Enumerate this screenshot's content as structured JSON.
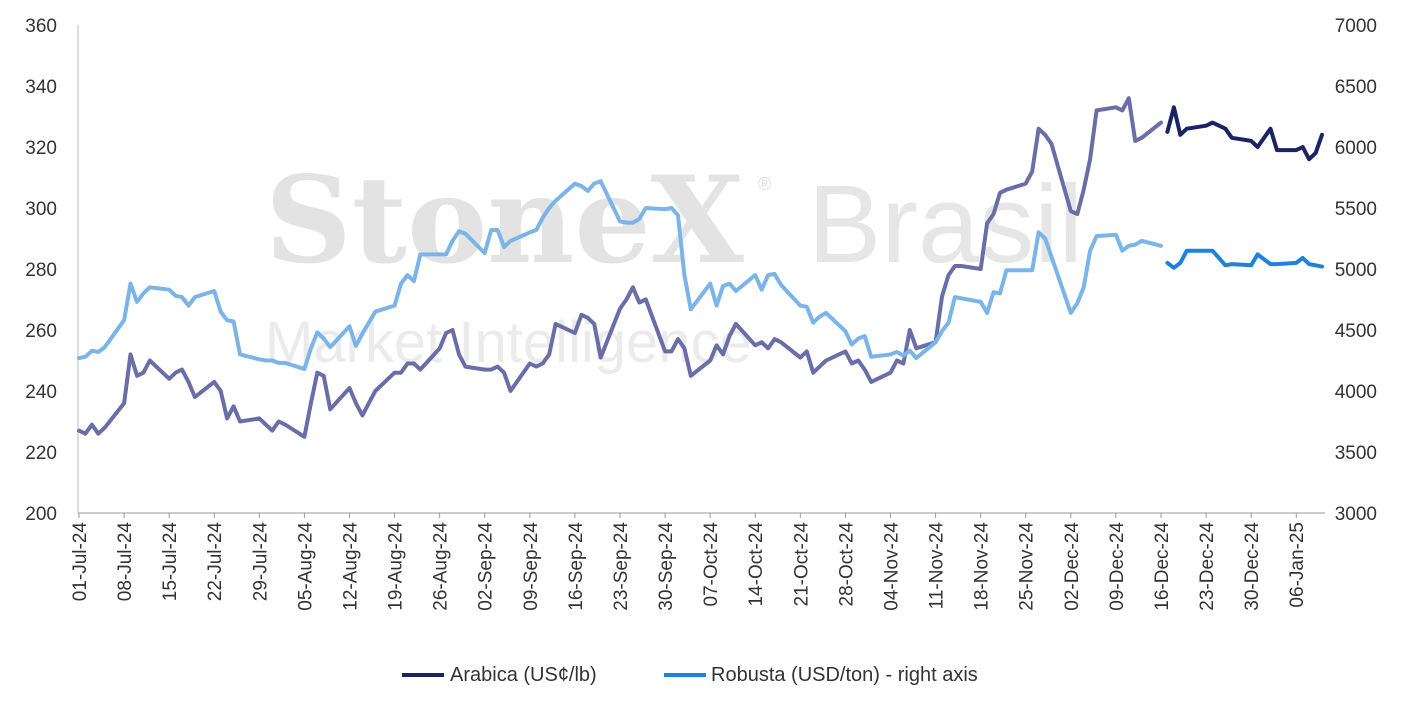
{
  "watermark": {
    "brand": "StoneX",
    "registered": "®",
    "country": "Brasil",
    "subtitle": "Market Intelligence"
  },
  "colors": {
    "arabica_hist": "#6a6ea8",
    "arabica_recent": "#1b2266",
    "robusta_hist": "#7ab4e8",
    "robusta_recent": "#1e82dc"
  },
  "chart_data": {
    "type": "line",
    "title": "",
    "xlabel": "",
    "ylabel": "",
    "ylim_left": [
      200,
      360
    ],
    "ylim_right": [
      3000,
      7000
    ],
    "yticks_left": [
      "200",
      "220",
      "240",
      "260",
      "280",
      "300",
      "320",
      "340",
      "360"
    ],
    "yticks_right": [
      "3000",
      "3500",
      "4000",
      "4500",
      "5000",
      "5500",
      "6000",
      "6500",
      "7000"
    ],
    "xticks": [
      "01-Jul-24",
      "08-Jul-24",
      "15-Jul-24",
      "22-Jul-24",
      "29-Jul-24",
      "05-Aug-24",
      "12-Aug-24",
      "19-Aug-24",
      "26-Aug-24",
      "02-Sep-24",
      "09-Sep-24",
      "16-Sep-24",
      "23-Sep-24",
      "30-Sep-24",
      "07-Oct-24",
      "14-Oct-24",
      "21-Oct-24",
      "28-Oct-24",
      "04-Nov-24",
      "11-Nov-24",
      "18-Nov-24",
      "25-Nov-24",
      "02-Dec-24",
      "09-Dec-24",
      "16-Dec-24",
      "23-Dec-24",
      "30-Dec-24",
      "06-Jan-25"
    ],
    "legend_position": "bottom-center",
    "grid": false,
    "series": [
      {
        "name": "Arabica (US¢/lb)",
        "axis": "left",
        "x": [
          "01-Jul-24",
          "02-Jul-24",
          "03-Jul-24",
          "04-Jul-24",
          "05-Jul-24",
          "08-Jul-24",
          "09-Jul-24",
          "10-Jul-24",
          "11-Jul-24",
          "12-Jul-24",
          "15-Jul-24",
          "16-Jul-24",
          "17-Jul-24",
          "18-Jul-24",
          "19-Jul-24",
          "22-Jul-24",
          "23-Jul-24",
          "24-Jul-24",
          "25-Jul-24",
          "26-Jul-24",
          "29-Jul-24",
          "30-Jul-24",
          "31-Jul-24",
          "01-Aug-24",
          "02-Aug-24",
          "05-Aug-24",
          "06-Aug-24",
          "07-Aug-24",
          "08-Aug-24",
          "09-Aug-24",
          "12-Aug-24",
          "13-Aug-24",
          "14-Aug-24",
          "15-Aug-24",
          "16-Aug-24",
          "19-Aug-24",
          "20-Aug-24",
          "21-Aug-24",
          "22-Aug-24",
          "23-Aug-24",
          "26-Aug-24",
          "27-Aug-24",
          "28-Aug-24",
          "29-Aug-24",
          "30-Aug-24",
          "02-Sep-24",
          "03-Sep-24",
          "04-Sep-24",
          "05-Sep-24",
          "06-Sep-24",
          "09-Sep-24",
          "10-Sep-24",
          "11-Sep-24",
          "12-Sep-24",
          "13-Sep-24",
          "16-Sep-24",
          "17-Sep-24",
          "18-Sep-24",
          "19-Sep-24",
          "20-Sep-24",
          "23-Sep-24",
          "24-Sep-24",
          "25-Sep-24",
          "26-Sep-24",
          "27-Sep-24",
          "30-Sep-24",
          "01-Oct-24",
          "02-Oct-24",
          "03-Oct-24",
          "04-Oct-24",
          "07-Oct-24",
          "08-Oct-24",
          "09-Oct-24",
          "10-Oct-24",
          "11-Oct-24",
          "14-Oct-24",
          "15-Oct-24",
          "16-Oct-24",
          "17-Oct-24",
          "18-Oct-24",
          "21-Oct-24",
          "22-Oct-24",
          "23-Oct-24",
          "24-Oct-24",
          "25-Oct-24",
          "28-Oct-24",
          "29-Oct-24",
          "30-Oct-24",
          "31-Oct-24",
          "01-Nov-24",
          "04-Nov-24",
          "05-Nov-24",
          "06-Nov-24",
          "07-Nov-24",
          "08-Nov-24",
          "11-Nov-24",
          "12-Nov-24",
          "13-Nov-24",
          "14-Nov-24",
          "15-Nov-24",
          "18-Nov-24",
          "19-Nov-24",
          "20-Nov-24",
          "21-Nov-24",
          "22-Nov-24",
          "25-Nov-24",
          "26-Nov-24",
          "27-Nov-24",
          "28-Nov-24",
          "29-Nov-24",
          "02-Dec-24",
          "03-Dec-24",
          "04-Dec-24",
          "05-Dec-24",
          "06-Dec-24",
          "09-Dec-24",
          "10-Dec-24",
          "11-Dec-24",
          "12-Dec-24",
          "13-Dec-24",
          "16-Dec-24",
          "17-Dec-24",
          "18-Dec-24",
          "19-Dec-24",
          "20-Dec-24",
          "23-Dec-24",
          "24-Dec-24",
          "26-Dec-24",
          "27-Dec-24",
          "30-Dec-24",
          "31-Dec-24",
          "02-Jan-25",
          "03-Jan-25",
          "06-Jan-25",
          "07-Jan-25",
          "08-Jan-25",
          "09-Jan-25",
          "10-Jan-25"
        ],
        "values": [
          227,
          226,
          229,
          226,
          228,
          236,
          252,
          245,
          246,
          250,
          244,
          246,
          247,
          243,
          238,
          243,
          240,
          231,
          235,
          230,
          231,
          229,
          227,
          230,
          229,
          225,
          236,
          246,
          245,
          234,
          241,
          236,
          232,
          236,
          240,
          246,
          246,
          249,
          249,
          247,
          254,
          259,
          260,
          252,
          248,
          247,
          247,
          248,
          246,
          240,
          249,
          248,
          249,
          252,
          262,
          259,
          265,
          264,
          262,
          251,
          267,
          270,
          274,
          269,
          270,
          253,
          253,
          257,
          254,
          245,
          250,
          255,
          252,
          258,
          262,
          255,
          256,
          254,
          257,
          256,
          251,
          253,
          246,
          248,
          250,
          253,
          249,
          250,
          247,
          243,
          246,
          250,
          249,
          260,
          254,
          256,
          271,
          278,
          281,
          281,
          280,
          295,
          298,
          305,
          306,
          308,
          312,
          326,
          324,
          321,
          299,
          298,
          306,
          316,
          332,
          333,
          332,
          336,
          322,
          323,
          328,
          325,
          333,
          324,
          326,
          327,
          328,
          326,
          323,
          322,
          320,
          326,
          319,
          319,
          320,
          316,
          318,
          324
        ]
      },
      {
        "name": "Robusta (USD/ton) - right axis",
        "axis": "right",
        "x": [
          "01-Jul-24",
          "02-Jul-24",
          "03-Jul-24",
          "04-Jul-24",
          "05-Jul-24",
          "08-Jul-24",
          "09-Jul-24",
          "10-Jul-24",
          "11-Jul-24",
          "12-Jul-24",
          "15-Jul-24",
          "16-Jul-24",
          "17-Jul-24",
          "18-Jul-24",
          "19-Jul-24",
          "22-Jul-24",
          "23-Jul-24",
          "24-Jul-24",
          "25-Jul-24",
          "26-Jul-24",
          "29-Jul-24",
          "30-Jul-24",
          "31-Jul-24",
          "01-Aug-24",
          "02-Aug-24",
          "05-Aug-24",
          "06-Aug-24",
          "07-Aug-24",
          "08-Aug-24",
          "09-Aug-24",
          "12-Aug-24",
          "13-Aug-24",
          "14-Aug-24",
          "15-Aug-24",
          "16-Aug-24",
          "19-Aug-24",
          "20-Aug-24",
          "21-Aug-24",
          "22-Aug-24",
          "23-Aug-24",
          "26-Aug-24",
          "27-Aug-24",
          "28-Aug-24",
          "29-Aug-24",
          "30-Aug-24",
          "02-Sep-24",
          "03-Sep-24",
          "04-Sep-24",
          "05-Sep-24",
          "06-Sep-24",
          "09-Sep-24",
          "10-Sep-24",
          "11-Sep-24",
          "12-Sep-24",
          "13-Sep-24",
          "16-Sep-24",
          "17-Sep-24",
          "18-Sep-24",
          "19-Sep-24",
          "20-Sep-24",
          "23-Sep-24",
          "24-Sep-24",
          "25-Sep-24",
          "26-Sep-24",
          "27-Sep-24",
          "30-Sep-24",
          "01-Oct-24",
          "02-Oct-24",
          "03-Oct-24",
          "04-Oct-24",
          "07-Oct-24",
          "08-Oct-24",
          "09-Oct-24",
          "10-Oct-24",
          "11-Oct-24",
          "14-Oct-24",
          "15-Oct-24",
          "16-Oct-24",
          "17-Oct-24",
          "18-Oct-24",
          "21-Oct-24",
          "22-Oct-24",
          "23-Oct-24",
          "24-Oct-24",
          "25-Oct-24",
          "28-Oct-24",
          "29-Oct-24",
          "30-Oct-24",
          "31-Oct-24",
          "01-Nov-24",
          "04-Nov-24",
          "05-Nov-24",
          "06-Nov-24",
          "07-Nov-24",
          "08-Nov-24",
          "11-Nov-24",
          "12-Nov-24",
          "13-Nov-24",
          "14-Nov-24",
          "15-Nov-24",
          "18-Nov-24",
          "19-Nov-24",
          "20-Nov-24",
          "21-Nov-24",
          "22-Nov-24",
          "25-Nov-24",
          "26-Nov-24",
          "27-Nov-24",
          "28-Nov-24",
          "29-Nov-24",
          "02-Dec-24",
          "03-Dec-24",
          "04-Dec-24",
          "05-Dec-24",
          "06-Dec-24",
          "09-Dec-24",
          "10-Dec-24",
          "11-Dec-24",
          "12-Dec-24",
          "13-Dec-24",
          "16-Dec-24",
          "17-Dec-24",
          "18-Dec-24",
          "19-Dec-24",
          "20-Dec-24",
          "23-Dec-24",
          "24-Dec-24",
          "26-Dec-24",
          "27-Dec-24",
          "30-Dec-24",
          "31-Dec-24",
          "02-Jan-25",
          "03-Jan-25",
          "06-Jan-25",
          "07-Jan-25",
          "08-Jan-25",
          "09-Jan-25",
          "10-Jan-25"
        ],
        "values": [
          4270,
          4280,
          4330,
          4320,
          4360,
          4580,
          4880,
          4730,
          4800,
          4850,
          4830,
          4780,
          4770,
          4700,
          4770,
          4820,
          4650,
          4580,
          4570,
          4300,
          4260,
          4250,
          4250,
          4230,
          4230,
          4180,
          4350,
          4480,
          4430,
          4360,
          4530,
          4370,
          4470,
          4560,
          4650,
          4700,
          4880,
          4950,
          4900,
          5120,
          5120,
          5120,
          5230,
          5310,
          5290,
          5130,
          5320,
          5320,
          5180,
          5230,
          5300,
          5320,
          5420,
          5500,
          5560,
          5700,
          5680,
          5640,
          5700,
          5720,
          5390,
          5380,
          5380,
          5410,
          5500,
          5490,
          5500,
          5440,
          4950,
          4670,
          4880,
          4700,
          4860,
          4880,
          4820,
          4950,
          4830,
          4950,
          4960,
          4870,
          4700,
          4690,
          4560,
          4610,
          4640,
          4490,
          4380,
          4430,
          4450,
          4280,
          4300,
          4320,
          4290,
          4330,
          4270,
          4400,
          4490,
          4560,
          4770,
          4760,
          4730,
          4640,
          4810,
          4800,
          4990,
          4990,
          4990,
          5300,
          5250,
          5100,
          4640,
          4720,
          4850,
          5150,
          5270,
          5280,
          5150,
          5190,
          5200,
          5230,
          5190,
          5050,
          5010,
          5050,
          5150,
          5150,
          5150,
          5030,
          5040,
          5030,
          5120,
          5040,
          5040,
          5050,
          5090,
          5040,
          5030,
          5020
        ]
      }
    ]
  },
  "split_index": 121
}
